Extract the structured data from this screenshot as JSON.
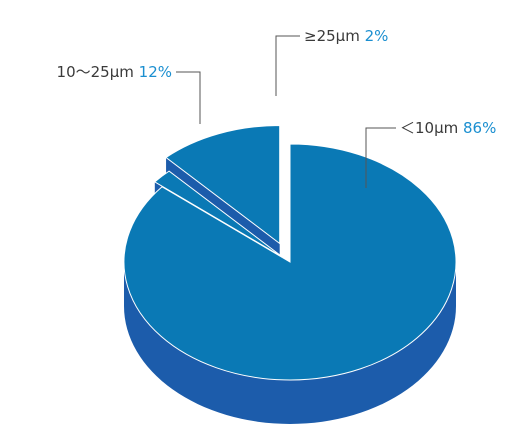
{
  "chart_data": {
    "type": "pie",
    "slices": [
      {
        "label": "＜10μm",
        "value": 86,
        "percent_label": "86%",
        "exploded": false
      },
      {
        "label": "10～25μm",
        "value": 12,
        "percent_label": "12%",
        "exploded": true
      },
      {
        "label": "≥25μm",
        "value": 2,
        "percent_label": "2%",
        "exploded": true
      }
    ],
    "three_d": true
  },
  "colors": {
    "top": "#0a79b5",
    "side": "#1c5cab",
    "percent_text": "#1b8fd0",
    "label_text": "#3a3a3a"
  }
}
